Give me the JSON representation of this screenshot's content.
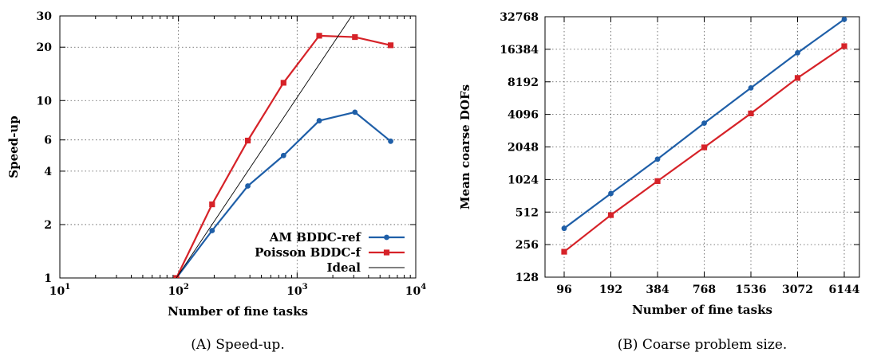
{
  "chart_data": [
    {
      "type": "line",
      "xlabel": "Number of fine tasks",
      "ylabel": "Speed-up",
      "xscale": "log",
      "yscale": "log",
      "xlim": [
        10,
        10000
      ],
      "ylim": [
        1,
        30
      ],
      "xticks": [
        {
          "value": 10,
          "base": "10",
          "exp": "1"
        },
        {
          "value": 100,
          "base": "10",
          "exp": "2"
        },
        {
          "value": 1000,
          "base": "10",
          "exp": "3"
        },
        {
          "value": 10000,
          "base": "10",
          "exp": "4"
        }
      ],
      "yticks": [
        {
          "value": 1,
          "label": "1"
        },
        {
          "value": 2,
          "label": "2"
        },
        {
          "value": 4,
          "label": "4"
        },
        {
          "value": 6,
          "label": "6"
        },
        {
          "value": 10,
          "label": "10"
        },
        {
          "value": 20,
          "label": "20"
        },
        {
          "value": 30,
          "label": "30"
        }
      ],
      "grid": true,
      "legend_position": "bottom-right",
      "caption": "(A) Speed-up.",
      "series": [
        {
          "name": "AM BDDC-ref",
          "color": "#1f5fa8",
          "marker": "circle",
          "x": [
            96,
            192,
            384,
            768,
            1536,
            3072,
            6144
          ],
          "y": [
            1,
            1.85,
            3.3,
            4.9,
            7.7,
            8.6,
            5.9
          ]
        },
        {
          "name": "Poisson BDDC-f",
          "color": "#d62228",
          "marker": "square",
          "x": [
            96,
            192,
            384,
            768,
            1536,
            3072,
            6144
          ],
          "y": [
            1,
            2.6,
            5.95,
            12.6,
            23.2,
            22.8,
            20.5
          ]
        },
        {
          "name": "Ideal",
          "color": "#000000",
          "marker": "none",
          "x": [
            96,
            3000
          ],
          "y": [
            1,
            31.25
          ]
        }
      ]
    },
    {
      "type": "line",
      "xlabel": "Number of fine tasks",
      "ylabel": "Mean coarse DOFs",
      "xscale": "log2",
      "yscale": "log2",
      "xlim": [
        96,
        6144
      ],
      "ylim": [
        128,
        32768
      ],
      "categories": [
        "96",
        "192",
        "384",
        "768",
        "1536",
        "3072",
        "6144"
      ],
      "yticks": [
        "128",
        "256",
        "512",
        "1024",
        "2048",
        "4096",
        "8192",
        "16384",
        "32768"
      ],
      "grid": true,
      "caption": "(B) Coarse problem size.",
      "series": [
        {
          "color": "#1f5fa8",
          "marker": "circle",
          "x": [
            96,
            192,
            384,
            768,
            1536,
            3072,
            6144
          ],
          "y": [
            362,
            760,
            1580,
            3400,
            7200,
            15200,
            31000
          ]
        },
        {
          "color": "#d62228",
          "marker": "square",
          "x": [
            96,
            192,
            384,
            768,
            1536,
            3072,
            6144
          ],
          "y": [
            220,
            480,
            990,
            2030,
            4180,
            8900,
            17500
          ]
        }
      ]
    }
  ]
}
